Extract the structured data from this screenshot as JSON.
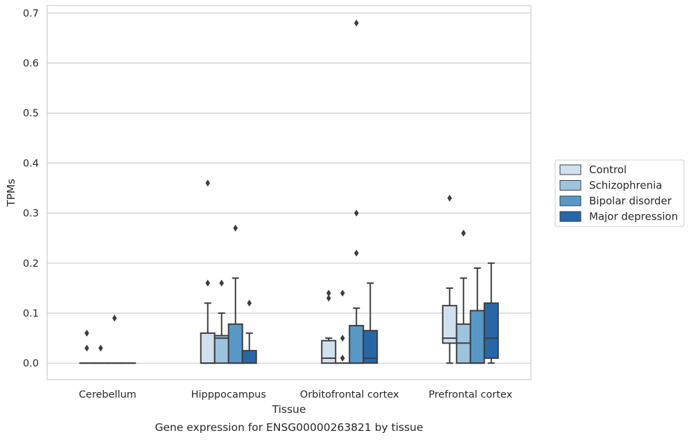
{
  "chart_data": {
    "type": "boxplot",
    "title": "",
    "caption": "Gene expression for ENSG00000263821 by tissue",
    "xlabel": "Tissue",
    "ylabel": "TPMs",
    "ylim": [
      -0.033,
      0.715
    ],
    "yticks": [
      0.0,
      0.1,
      0.2,
      0.3,
      0.4,
      0.5,
      0.6,
      0.7
    ],
    "ytick_labels": [
      "0.0",
      "0.1",
      "0.2",
      "0.3",
      "0.4",
      "0.5",
      "0.6",
      "0.7"
    ],
    "grid": "horizontal",
    "legend_position": "right",
    "categories": [
      "Cerebellum",
      "Hipppocampus",
      "Orbitofrontal cortex",
      "Prefrontal cortex"
    ],
    "series": [
      {
        "name": "Control",
        "color": "#d1e0ef",
        "boxes": [
          {
            "q1": 0.0,
            "median": 0.0,
            "q3": 0.0,
            "whisker_low": 0.0,
            "whisker_high": 0.0,
            "outliers": [
              0.03,
              0.06
            ]
          },
          {
            "q1": 0.0,
            "median": 0.0,
            "q3": 0.06,
            "whisker_low": 0.0,
            "whisker_high": 0.12,
            "outliers": [
              0.16,
              0.36
            ]
          },
          {
            "q1": 0.0,
            "median": 0.01,
            "q3": 0.045,
            "whisker_low": 0.0,
            "whisker_high": 0.05,
            "outliers": [
              0.13,
              0.14
            ]
          },
          {
            "q1": 0.04,
            "median": 0.05,
            "q3": 0.115,
            "whisker_low": 0.0,
            "whisker_high": 0.15,
            "outliers": [
              0.33
            ]
          }
        ]
      },
      {
        "name": "Schizophrenia",
        "color": "#9dc4de",
        "boxes": [
          {
            "q1": 0.0,
            "median": 0.0,
            "q3": 0.0,
            "whisker_low": 0.0,
            "whisker_high": 0.0,
            "outliers": [
              0.03
            ]
          },
          {
            "q1": 0.0,
            "median": 0.05,
            "q3": 0.055,
            "whisker_low": 0.0,
            "whisker_high": 0.1,
            "outliers": [
              0.16
            ]
          },
          {
            "q1": 0.0,
            "median": 0.0,
            "q3": 0.0,
            "whisker_low": 0.0,
            "whisker_high": 0.0,
            "outliers": [
              0.01,
              0.05,
              0.14
            ]
          },
          {
            "q1": 0.0,
            "median": 0.04,
            "q3": 0.078,
            "whisker_low": 0.0,
            "whisker_high": 0.17,
            "outliers": [
              0.26
            ]
          }
        ]
      },
      {
        "name": "Bipolar disorder",
        "color": "#5699c6",
        "boxes": [
          {
            "q1": 0.0,
            "median": 0.0,
            "q3": 0.0,
            "whisker_low": 0.0,
            "whisker_high": 0.0,
            "outliers": [
              0.09
            ]
          },
          {
            "q1": 0.0,
            "median": 0.0,
            "q3": 0.078,
            "whisker_low": 0.0,
            "whisker_high": 0.17,
            "outliers": [
              0.27
            ]
          },
          {
            "q1": 0.0,
            "median": 0.0,
            "q3": 0.075,
            "whisker_low": 0.0,
            "whisker_high": 0.11,
            "outliers": [
              0.22,
              0.3,
              0.68
            ]
          },
          {
            "q1": 0.0,
            "median": 0.0,
            "q3": 0.105,
            "whisker_low": 0.0,
            "whisker_high": 0.19,
            "outliers": []
          }
        ]
      },
      {
        "name": "Major depression",
        "color": "#2767a8",
        "boxes": [
          {
            "q1": 0.0,
            "median": 0.0,
            "q3": 0.0,
            "whisker_low": 0.0,
            "whisker_high": 0.0,
            "outliers": []
          },
          {
            "q1": 0.0,
            "median": 0.0,
            "q3": 0.025,
            "whisker_low": 0.0,
            "whisker_high": 0.06,
            "outliers": [
              0.12
            ]
          },
          {
            "q1": 0.0,
            "median": 0.01,
            "q3": 0.065,
            "whisker_low": 0.0,
            "whisker_high": 0.16,
            "outliers": []
          },
          {
            "q1": 0.01,
            "median": 0.05,
            "q3": 0.12,
            "whisker_low": 0.0,
            "whisker_high": 0.2,
            "outliers": []
          }
        ]
      }
    ]
  }
}
